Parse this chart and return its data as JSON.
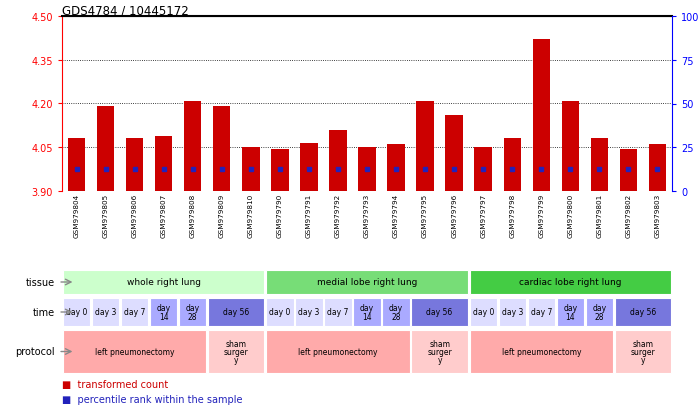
{
  "title": "GDS4784 / 10445172",
  "samples": [
    "GSM979804",
    "GSM979805",
    "GSM979806",
    "GSM979807",
    "GSM979808",
    "GSM979809",
    "GSM979810",
    "GSM979790",
    "GSM979791",
    "GSM979792",
    "GSM979793",
    "GSM979794",
    "GSM979795",
    "GSM979796",
    "GSM979797",
    "GSM979798",
    "GSM979799",
    "GSM979800",
    "GSM979801",
    "GSM979802",
    "GSM979803"
  ],
  "bar_values": [
    4.08,
    4.19,
    4.08,
    4.09,
    4.21,
    4.19,
    4.05,
    4.045,
    4.065,
    4.11,
    4.05,
    4.06,
    4.21,
    4.16,
    4.05,
    4.08,
    4.42,
    4.21,
    4.08,
    4.045,
    4.06
  ],
  "blue_values": [
    3.975,
    3.975,
    3.975,
    3.975,
    3.975,
    3.975,
    3.975,
    3.975,
    3.975,
    3.975,
    3.975,
    3.975,
    3.975,
    3.975,
    3.975,
    3.975,
    3.975,
    3.975,
    3.975,
    3.975,
    3.975
  ],
  "ymin": 3.9,
  "ymax": 4.5,
  "yticks": [
    3.9,
    4.05,
    4.2,
    4.35,
    4.5
  ],
  "right_yticks": [
    0,
    25,
    50,
    75,
    100
  ],
  "right_yticklabels": [
    "0",
    "25",
    "50",
    "75",
    "100%"
  ],
  "bar_color": "#cc0000",
  "blue_color": "#2222bb",
  "bar_base": 3.9,
  "tissue_groups": [
    {
      "label": "whole right lung",
      "start": 0,
      "end": 7,
      "color": "#ccffcc"
    },
    {
      "label": "medial lobe right lung",
      "start": 7,
      "end": 14,
      "color": "#77dd77"
    },
    {
      "label": "cardiac lobe right lung",
      "start": 14,
      "end": 21,
      "color": "#44cc44"
    }
  ],
  "time_spans": [
    {
      "label": "day 0",
      "start": 0,
      "end": 1,
      "color": "#ddddff"
    },
    {
      "label": "day 3",
      "start": 1,
      "end": 2,
      "color": "#ddddff"
    },
    {
      "label": "day 7",
      "start": 2,
      "end": 3,
      "color": "#ddddff"
    },
    {
      "label": "day\n14",
      "start": 3,
      "end": 4,
      "color": "#aaaaff"
    },
    {
      "label": "day\n28",
      "start": 4,
      "end": 5,
      "color": "#aaaaff"
    },
    {
      "label": "day 56",
      "start": 5,
      "end": 7,
      "color": "#7777dd"
    },
    {
      "label": "day 0",
      "start": 7,
      "end": 8,
      "color": "#ddddff"
    },
    {
      "label": "day 3",
      "start": 8,
      "end": 9,
      "color": "#ddddff"
    },
    {
      "label": "day 7",
      "start": 9,
      "end": 10,
      "color": "#ddddff"
    },
    {
      "label": "day\n14",
      "start": 10,
      "end": 11,
      "color": "#aaaaff"
    },
    {
      "label": "day\n28",
      "start": 11,
      "end": 12,
      "color": "#aaaaff"
    },
    {
      "label": "day 56",
      "start": 12,
      "end": 14,
      "color": "#7777dd"
    },
    {
      "label": "day 0",
      "start": 14,
      "end": 15,
      "color": "#ddddff"
    },
    {
      "label": "day 3",
      "start": 15,
      "end": 16,
      "color": "#ddddff"
    },
    {
      "label": "day 7",
      "start": 16,
      "end": 17,
      "color": "#ddddff"
    },
    {
      "label": "day\n14",
      "start": 17,
      "end": 18,
      "color": "#aaaaff"
    },
    {
      "label": "day\n28",
      "start": 18,
      "end": 19,
      "color": "#aaaaff"
    },
    {
      "label": "day 56",
      "start": 19,
      "end": 21,
      "color": "#7777dd"
    }
  ],
  "protocol_spans": [
    {
      "label": "left pneumonectomy",
      "start": 0,
      "end": 5,
      "color": "#ffaaaa"
    },
    {
      "label": "sham\nsurger\ny",
      "start": 5,
      "end": 7,
      "color": "#ffcccc"
    },
    {
      "label": "left pneumonectomy",
      "start": 7,
      "end": 12,
      "color": "#ffaaaa"
    },
    {
      "label": "sham\nsurger\ny",
      "start": 12,
      "end": 14,
      "color": "#ffcccc"
    },
    {
      "label": "left pneumonectomy",
      "start": 14,
      "end": 19,
      "color": "#ffaaaa"
    },
    {
      "label": "sham\nsurger\ny",
      "start": 19,
      "end": 21,
      "color": "#ffcccc"
    }
  ],
  "row_labels": [
    "tissue",
    "time",
    "protocol"
  ],
  "legend_red": "transformed count",
  "legend_blue": "percentile rank within the sample"
}
